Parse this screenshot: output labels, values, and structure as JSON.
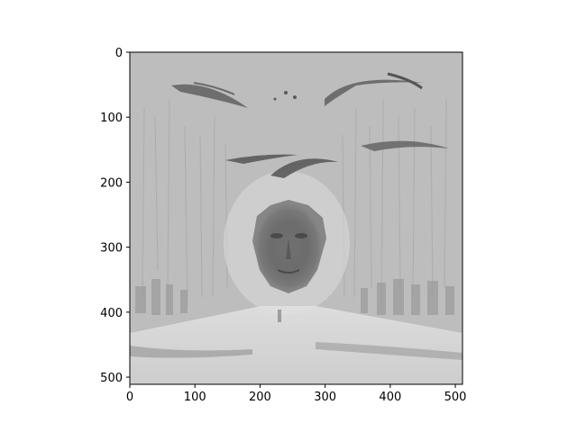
{
  "chart_data": {
    "type": "heatmap",
    "title": "",
    "xlabel": "",
    "ylabel": "",
    "xlim": [
      0,
      511
    ],
    "ylim": [
      511,
      0
    ],
    "x_ticks": [
      0,
      100,
      200,
      300,
      400,
      500
    ],
    "y_ticks": [
      0,
      100,
      200,
      300,
      400,
      500
    ],
    "x_tick_labels": [
      "0",
      "100",
      "200",
      "300",
      "400",
      "500"
    ],
    "y_tick_labels": [
      "0",
      "100",
      "200",
      "300",
      "400",
      "500"
    ],
    "image": {
      "colormap": "gray",
      "width": 512,
      "height": 512,
      "content": "grayscale image of a tree-lined avenue with a face formed by foliage at center and birds in the sky",
      "background_level": 0.74
    },
    "grid": false,
    "legend": "none"
  },
  "colors": {
    "axes_background": "#bdbdbd",
    "spine": "#000000",
    "tick_text": "#000000",
    "figure_background": "#ffffff"
  }
}
